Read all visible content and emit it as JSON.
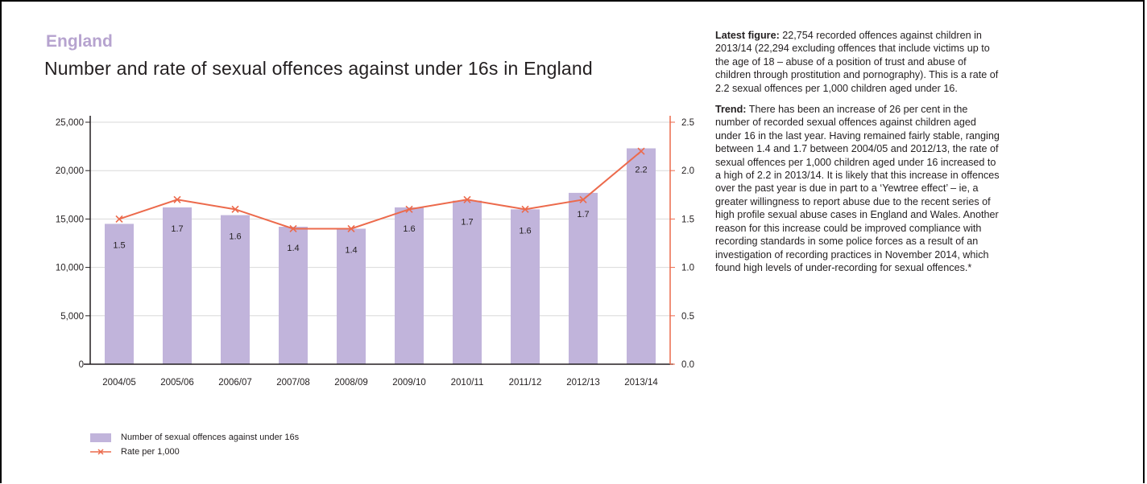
{
  "region": "England",
  "title": "Number and rate of sexual offences against under 16s in England",
  "legend": {
    "bars": "Number of sexual offences against under 16s",
    "line": "Rate per 1,000"
  },
  "colors": {
    "bar": "#c1b4db",
    "line": "#ec6a4c",
    "region": "#b6a3cf"
  },
  "chart_data": {
    "type": "bar",
    "categories": [
      "2004/05",
      "2005/06",
      "2006/07",
      "2007/08",
      "2008/09",
      "2009/10",
      "2010/11",
      "2011/12",
      "2012/13",
      "2013/14"
    ],
    "series": [
      {
        "name": "Number of sexual offences against under 16s",
        "type": "bar",
        "axis": "left",
        "values": [
          14500,
          16200,
          15400,
          14200,
          14000,
          16200,
          16900,
          16000,
          17700,
          22300
        ]
      },
      {
        "name": "Rate per 1,000",
        "type": "line",
        "axis": "right",
        "values": [
          1.5,
          1.7,
          1.6,
          1.4,
          1.4,
          1.6,
          1.7,
          1.6,
          1.7,
          2.2
        ]
      }
    ],
    "data_labels": [
      "1.5",
      "1.7",
      "1.6",
      "1.4",
      "1.4",
      "1.6",
      "1.7",
      "1.6",
      "1.7",
      "2.2"
    ],
    "ylim_left": [
      0,
      25000
    ],
    "ylim_right": [
      0,
      2.5
    ],
    "left_ticks": [
      "0",
      "5,000",
      "10,000",
      "15,000",
      "20,000",
      "25,000"
    ],
    "right_ticks": [
      "0.0",
      "0.5",
      "1.0",
      "1.5",
      "2.0",
      "2.5"
    ],
    "grid": true,
    "legend_position": "bottom-left"
  },
  "sidebar": {
    "latest_label": "Latest figure:",
    "latest_text": " 22,754 recorded offences against children in 2013/14 (22,294 excluding offences that include victims up to the age of 18 – abuse of a position of trust and abuse of children through prostitution and pornography). This is a rate of 2.2 sexual offences per 1,000 children aged under 16.",
    "trend_label": "Trend:",
    "trend_text": " There has been an increase of 26 per cent in the number of recorded sexual offences against children aged under 16 in the last year. Having remained fairly stable, ranging between 1.4 and 1.7 between 2004/05 and 2012/13, the rate of sexual offences per 1,000 children aged under 16 increased to a high of 2.2 in 2013/14. It is likely that this increase in offences over the past year is due in part to a ‘Yewtree effect’ – ie, a greater willingness to report abuse due to the recent series of high profile sexual abuse cases in England and Wales. Another reason for this increase could be improved compliance with recording standards in some police forces as a result of an investigation of recording practices in November 2014, which found high levels of under-recording for sexual offences.*"
  }
}
